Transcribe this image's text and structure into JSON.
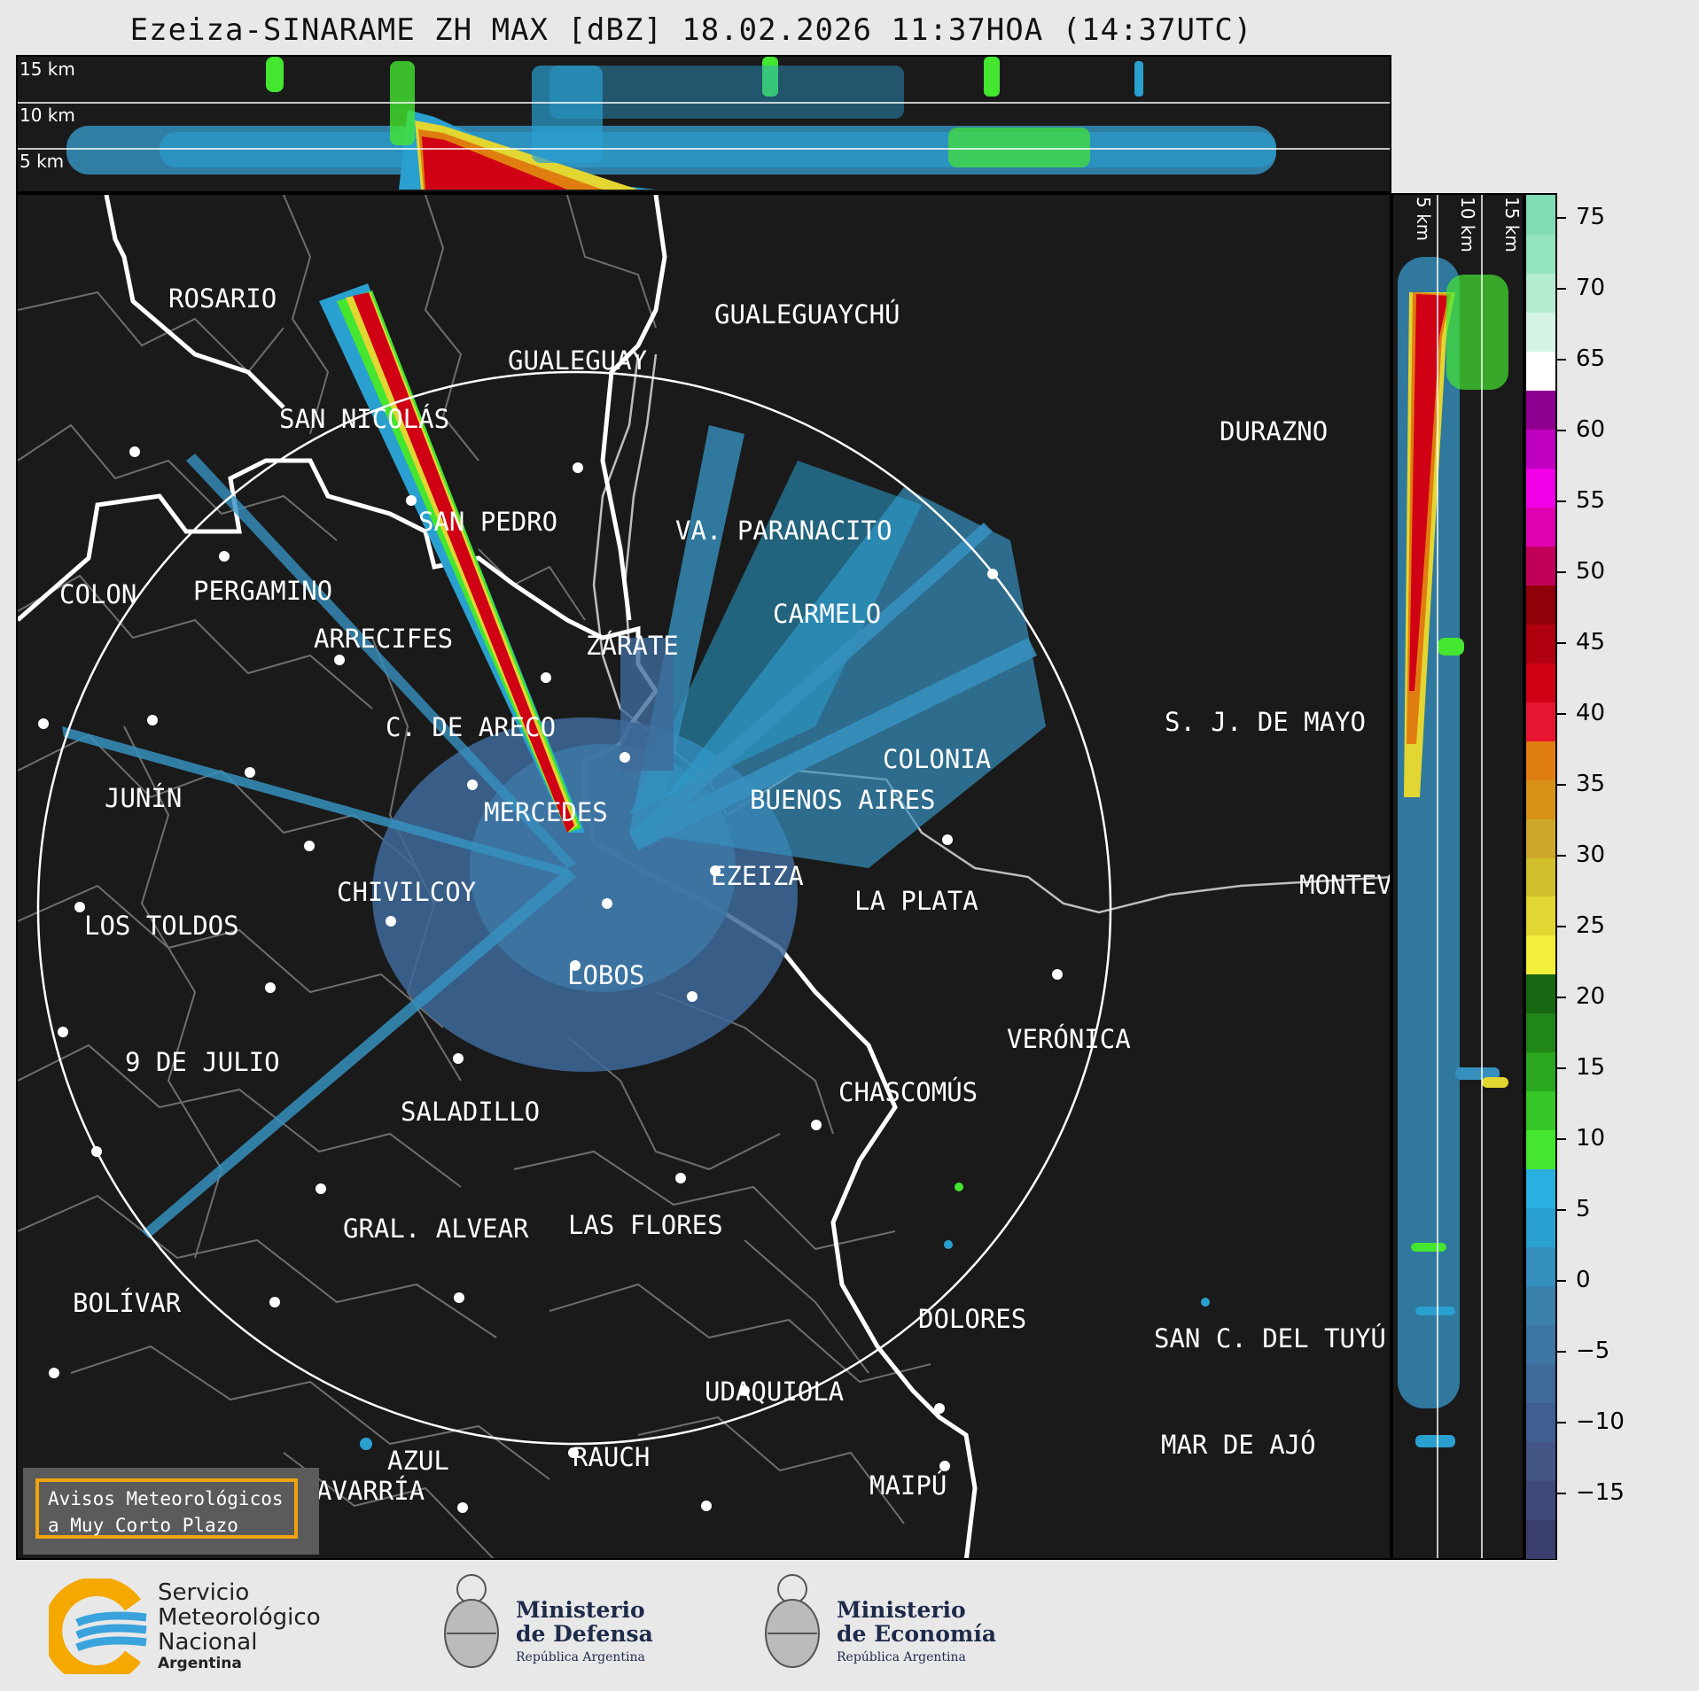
{
  "title": "Ezeiza-SINARAME ZH MAX [dBZ] 18.02.2026 11:37HOA (14:37UTC)",
  "top_panel": {
    "height_labels": [
      "15 km",
      "10 km",
      "5 km"
    ]
  },
  "right_panel": {
    "height_labels": [
      "5 km",
      "10 km",
      "15 km"
    ]
  },
  "cities": [
    {
      "name": "ROSARIO"
    },
    {
      "name": "GUALEGUAYCHÚ"
    },
    {
      "name": "GUALEGUAY"
    },
    {
      "name": "SAN NICOLÁS"
    },
    {
      "name": "DURAZNO"
    },
    {
      "name": "SAN PEDRO"
    },
    {
      "name": "VA. PARANACITO"
    },
    {
      "name": "COLON"
    },
    {
      "name": "PERGAMINO"
    },
    {
      "name": "CARMELO"
    },
    {
      "name": "ARRECIFES"
    },
    {
      "name": "ZÁRATE"
    },
    {
      "name": "C. DE ARECO"
    },
    {
      "name": "S. J. DE MAYO"
    },
    {
      "name": "COLONIA"
    },
    {
      "name": "JUNÍN"
    },
    {
      "name": "BUENOS AIRES"
    },
    {
      "name": "MERCEDES"
    },
    {
      "name": "EZEIZA"
    },
    {
      "name": "MONTEVIDEO"
    },
    {
      "name": "CHIVILCOY"
    },
    {
      "name": "LA PLATA"
    },
    {
      "name": "LOS TOLDOS"
    },
    {
      "name": "LOBOS"
    },
    {
      "name": "VERÓNICA"
    },
    {
      "name": "9 DE JULIO"
    },
    {
      "name": "CHASCOMÚS"
    },
    {
      "name": "SALADILLO"
    },
    {
      "name": "GRAL. ALVEAR"
    },
    {
      "name": "LAS FLORES"
    },
    {
      "name": "BOLÍVAR"
    },
    {
      "name": "DOLORES"
    },
    {
      "name": "SAN C. DEL TUYÚ"
    },
    {
      "name": "UDAQUIOLA"
    },
    {
      "name": "MAR DE AJÓ"
    },
    {
      "name": "AZUL"
    },
    {
      "name": "RAUCH"
    },
    {
      "name": "OLAVARRÍA"
    },
    {
      "name": "MAIPÚ"
    }
  ],
  "colorbar": {
    "unit": "dBZ",
    "ticks": [
      "75",
      "70",
      "65",
      "60",
      "55",
      "50",
      "45",
      "40",
      "35",
      "30",
      "25",
      "20",
      "15",
      "10",
      "5",
      "0",
      "−5",
      "−10",
      "−15"
    ],
    "colors": [
      "#3b3f6e",
      "#3f4a7a",
      "#435585",
      "#3f5f90",
      "#3e6a9a",
      "#3d75a4",
      "#3a80ad",
      "#3690be",
      "#2aa0d0",
      "#2ab0e0",
      "#44e630",
      "#36c627",
      "#2aa61f",
      "#208618",
      "#176812",
      "#f2ef3a",
      "#e2d632",
      "#d2bf2c",
      "#cea82a",
      "#d79218",
      "#e07d10",
      "#e81530",
      "#d00015",
      "#b00010",
      "#900008",
      "#c0005a",
      "#e000b0",
      "#f000e6",
      "#c000c0",
      "#900090",
      "#ffffff",
      "#d4f3e4",
      "#b4ecd2",
      "#94e4c0",
      "#80dcb4"
    ]
  },
  "warning_box": {
    "line1": "Avisos Meteorológicos",
    "line2": "a Muy Corto Plazo"
  },
  "footer": {
    "smn_line1": "Servicio",
    "smn_line2": "Meteorológico",
    "smn_line3": "Nacional",
    "smn_line4": "Argentina",
    "defensa_line1": "Ministerio",
    "defensa_line2": "de Defensa",
    "defensa_line3": "República Argentina",
    "economia_line1": "Ministerio",
    "economia_line2": "de Economía",
    "economia_line3": "República Argentina"
  }
}
